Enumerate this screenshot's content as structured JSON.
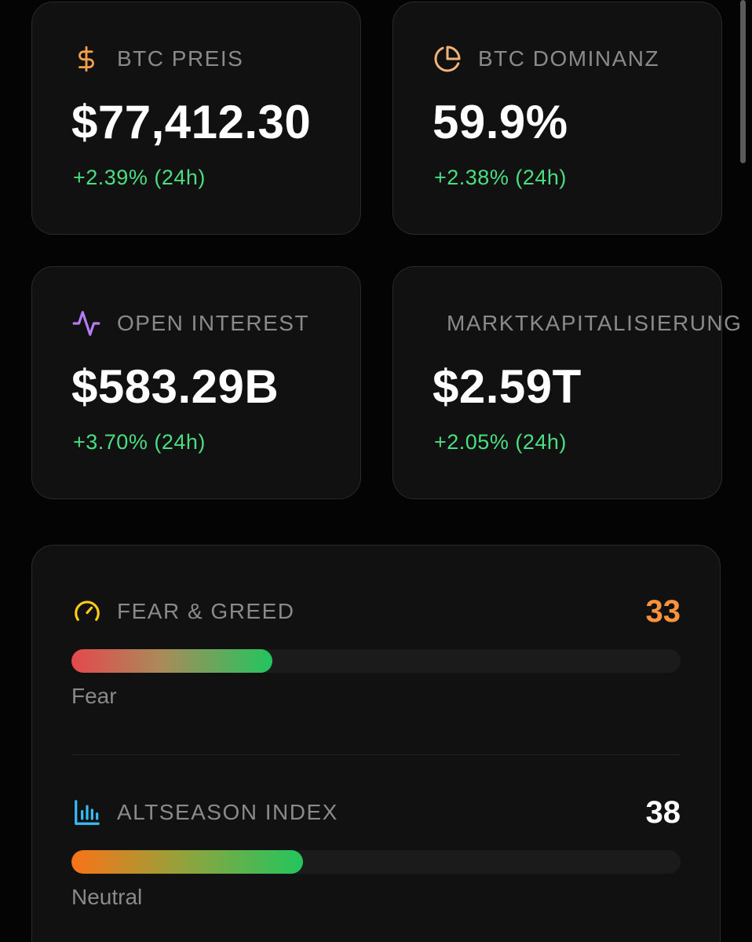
{
  "stats": {
    "btc_price": {
      "label": "BTC PREIS",
      "value": "$77,412.30",
      "change": "+2.39% (24h)",
      "icon": "dollar-icon",
      "icon_color": "#f59e4c"
    },
    "btc_dominance": {
      "label": "BTC DOMINANZ",
      "value": "59.9%",
      "change": "+2.38% (24h)",
      "icon": "pie-chart-icon",
      "icon_color": "#f0b47a"
    },
    "open_interest": {
      "label": "OPEN INTEREST",
      "value": "$583.29B",
      "change": "+3.70% (24h)",
      "icon": "activity-icon",
      "icon_color": "#b57cf5"
    },
    "market_cap": {
      "label": "MARKTKAPITALISIERUNG",
      "value": "$2.59T",
      "change": "+2.05% (24h)"
    }
  },
  "indices": {
    "fear_greed": {
      "label": "FEAR & GREED",
      "value": "33",
      "caption": "Fear",
      "fill_fraction": 0.33,
      "value_color": "#fb923c",
      "icon": "gauge-icon",
      "icon_color": "#facc15"
    },
    "altseason": {
      "label": "ALTSEASON INDEX",
      "value": "38",
      "caption": "Neutral",
      "fill_fraction": 0.38,
      "value_color": "#ffffff",
      "icon": "bar-chart-icon",
      "icon_color": "#38bdf8"
    }
  },
  "colors": {
    "positive": "#4ade80",
    "card_background": "#111111",
    "page_background": "#040404"
  }
}
